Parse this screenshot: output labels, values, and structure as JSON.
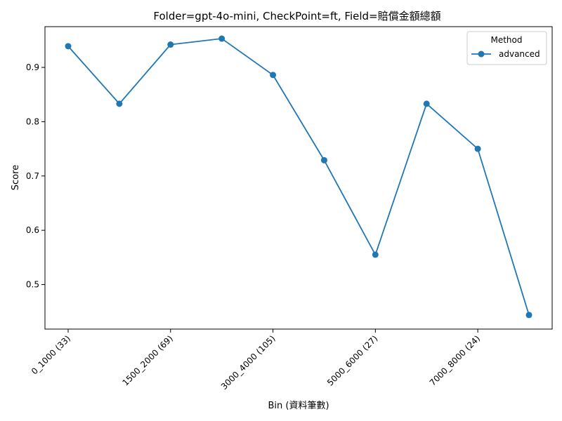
{
  "chart_data": {
    "type": "line",
    "title": "Folder=gpt-4o-mini, CheckPoint=ft, Field=賠償金額總額",
    "xlabel": "Bin (資料筆數)",
    "ylabel": "Score",
    "x_tick_labels": [
      "0_1000 (33)",
      "1500_2000 (69)",
      "3000_4000 (105)",
      "5000_6000 (27)",
      "7000_8000 (24)"
    ],
    "y_ticks": [
      0.5,
      0.6,
      0.7,
      0.8,
      0.9
    ],
    "y_tick_labels": [
      "0.5",
      "0.6",
      "0.7",
      "0.8",
      "0.9"
    ],
    "ylim": [
      0.418,
      0.975
    ],
    "grid": false,
    "legend": {
      "title": "Method",
      "placement": "top-right"
    },
    "series": [
      {
        "name": "advanced",
        "color": "#1f77b4",
        "values": [
          0.939,
          0.833,
          0.942,
          0.953,
          0.886,
          0.729,
          0.555,
          0.833,
          0.75,
          0.444
        ]
      }
    ]
  }
}
